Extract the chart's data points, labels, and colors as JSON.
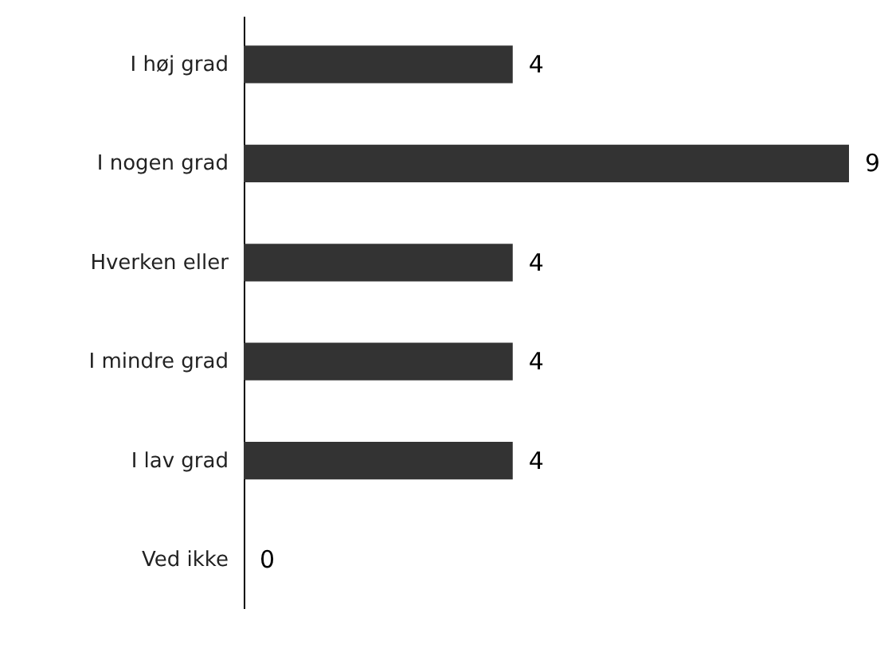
{
  "chart_data": {
    "type": "bar",
    "orientation": "horizontal",
    "categories": [
      "I høj grad",
      "I nogen grad",
      "Hverken eller",
      "I mindre grad",
      "I lav grad",
      "Ved ikke"
    ],
    "values": [
      4,
      9,
      4,
      4,
      4,
      0
    ],
    "color": "#333333",
    "data_labels": true
  }
}
